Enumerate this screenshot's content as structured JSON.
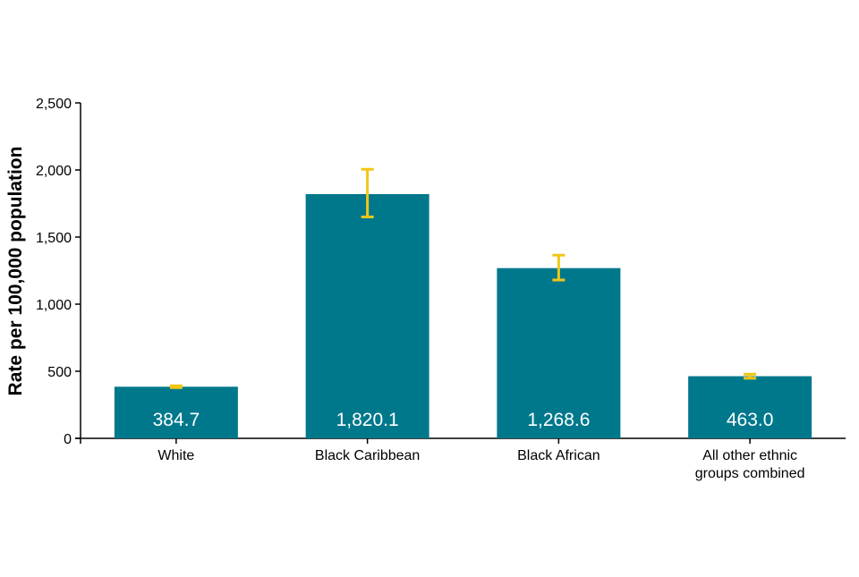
{
  "chart_data": {
    "type": "bar",
    "title": "",
    "xlabel": "",
    "ylabel": "Rate per 100,000 population",
    "categories": [
      [
        "White"
      ],
      [
        "Black Caribbean"
      ],
      [
        "Black African"
      ],
      [
        "All other ethnic",
        "groups combined"
      ]
    ],
    "values": [
      384.7,
      1820.1,
      1268.6,
      463.0
    ],
    "value_labels": [
      "384.7",
      "1,820.1",
      "1,268.6",
      "463.0"
    ],
    "error_bars": [
      {
        "low": 378,
        "high": 392
      },
      {
        "low": 1650,
        "high": 2005
      },
      {
        "low": 1180,
        "high": 1365
      },
      {
        "low": 448,
        "high": 478
      }
    ],
    "ylim": [
      0,
      2500
    ],
    "yticks": [
      0,
      500,
      1000,
      1500,
      2000,
      2500
    ],
    "ytick_labels": [
      "0",
      "500",
      "1,000",
      "1,500",
      "2,000",
      "2,500"
    ],
    "grid": false,
    "colors": {
      "bar": "#00788C",
      "error_bar": "#F2C617",
      "axis": "#000000",
      "value_label": "#ffffff"
    }
  }
}
